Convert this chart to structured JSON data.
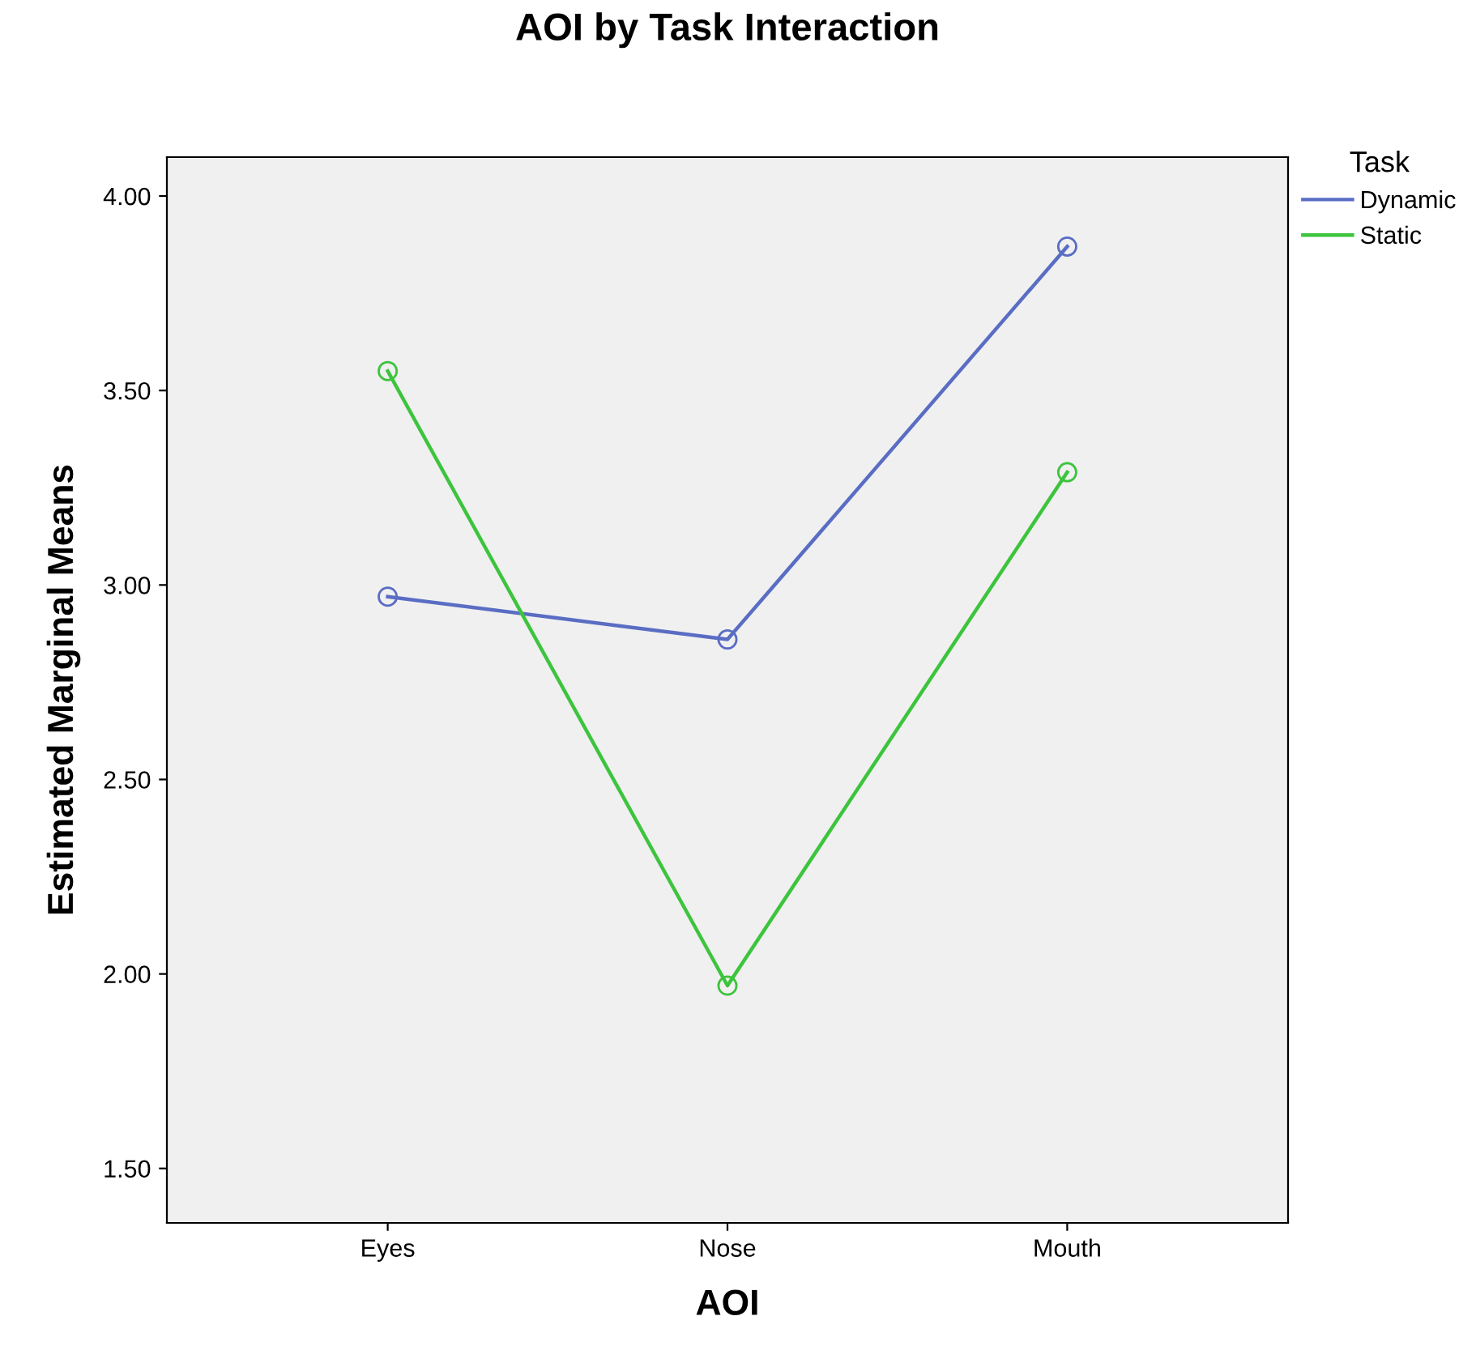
{
  "chart_data": {
    "type": "line",
    "title": "AOI by Task Interaction",
    "xlabel": "AOI",
    "ylabel": "Estimated Marginal Means",
    "legend_title": "Task",
    "categories": [
      "Eyes",
      "Nose",
      "Mouth"
    ],
    "series": [
      {
        "name": "Dynamic",
        "color": "#5a6dc4",
        "values": [
          2.97,
          2.86,
          3.87
        ]
      },
      {
        "name": "Static",
        "color": "#3dc43d",
        "values": [
          3.55,
          1.97,
          3.29
        ]
      }
    ],
    "ylim": [
      1.36,
      4.1
    ],
    "yticks": [
      {
        "value": 1.5,
        "label": "1.50"
      },
      {
        "value": 2,
        "label": "2.00"
      },
      {
        "value": 2.5,
        "label": "2.50"
      },
      {
        "value": 3,
        "label": "3.00"
      },
      {
        "value": 3.5,
        "label": "3.50"
      },
      {
        "value": 4,
        "label": "4.00"
      }
    ],
    "marker": "circle",
    "line_style": "solid",
    "grid": false,
    "legend": "top right"
  }
}
